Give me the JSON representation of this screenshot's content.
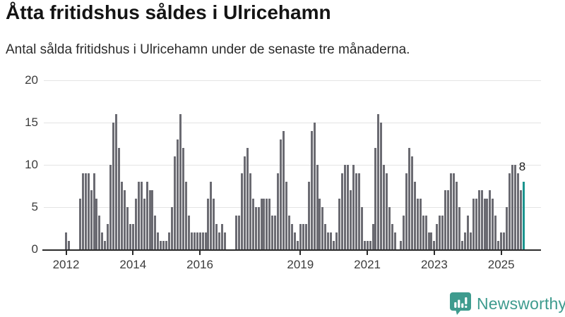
{
  "header": {
    "title": "Åtta fritidshus såldes i Ulricehamn",
    "subtitle": "Antal sålda fritidshus i Ulricehamn under de senaste tre månaderna."
  },
  "chart_data": {
    "type": "bar",
    "frequency": "monthly",
    "x_start": "2012-01",
    "x_end": "2025-09",
    "values": [
      2,
      1,
      0,
      0,
      0,
      6,
      9,
      9,
      9,
      7,
      9,
      6,
      4,
      2,
      1,
      3,
      10,
      15,
      16,
      12,
      8,
      7,
      5,
      3,
      3,
      6,
      8,
      8,
      6,
      8,
      7,
      7,
      4,
      2,
      1,
      1,
      1,
      2,
      5,
      11,
      13,
      16,
      12,
      8,
      4,
      2,
      2,
      2,
      2,
      2,
      2,
      6,
      8,
      6,
      3,
      2,
      3,
      2,
      0,
      0,
      0,
      4,
      4,
      9,
      11,
      12,
      9,
      6,
      5,
      5,
      6,
      6,
      6,
      6,
      4,
      4,
      9,
      13,
      14,
      8,
      4,
      3,
      2,
      1,
      3,
      3,
      3,
      8,
      14,
      15,
      10,
      6,
      5,
      3,
      2,
      2,
      1,
      2,
      6,
      9,
      10,
      10,
      7,
      10,
      9,
      9,
      5,
      1,
      1,
      1,
      3,
      12,
      16,
      15,
      10,
      9,
      5,
      3,
      2,
      0,
      1,
      4,
      9,
      12,
      11,
      8,
      6,
      6,
      4,
      4,
      2,
      2,
      1,
      3,
      4,
      4,
      7,
      7,
      9,
      9,
      8,
      5,
      1,
      2,
      4,
      2,
      6,
      6,
      7,
      7,
      6,
      6,
      7,
      6,
      4,
      1,
      2,
      2,
      5,
      9,
      10,
      10,
      9,
      7,
      8
    ],
    "ylim": [
      0,
      20
    ],
    "yticks": [
      0,
      5,
      10,
      15,
      20
    ],
    "xticks": [
      2012,
      2014,
      2016,
      2019,
      2021,
      2023,
      2025
    ],
    "grid": true,
    "legend": false,
    "bar_color": "#6b6b72",
    "highlight": {
      "index": 164,
      "color": "#1b948e",
      "value": 8
    },
    "annotation": {
      "text": "8"
    }
  },
  "footer": {
    "brand": "Newsworthy",
    "brand_color": "#3e9b8e",
    "logo_icon": "newsworthy-chart-bubble-icon"
  }
}
